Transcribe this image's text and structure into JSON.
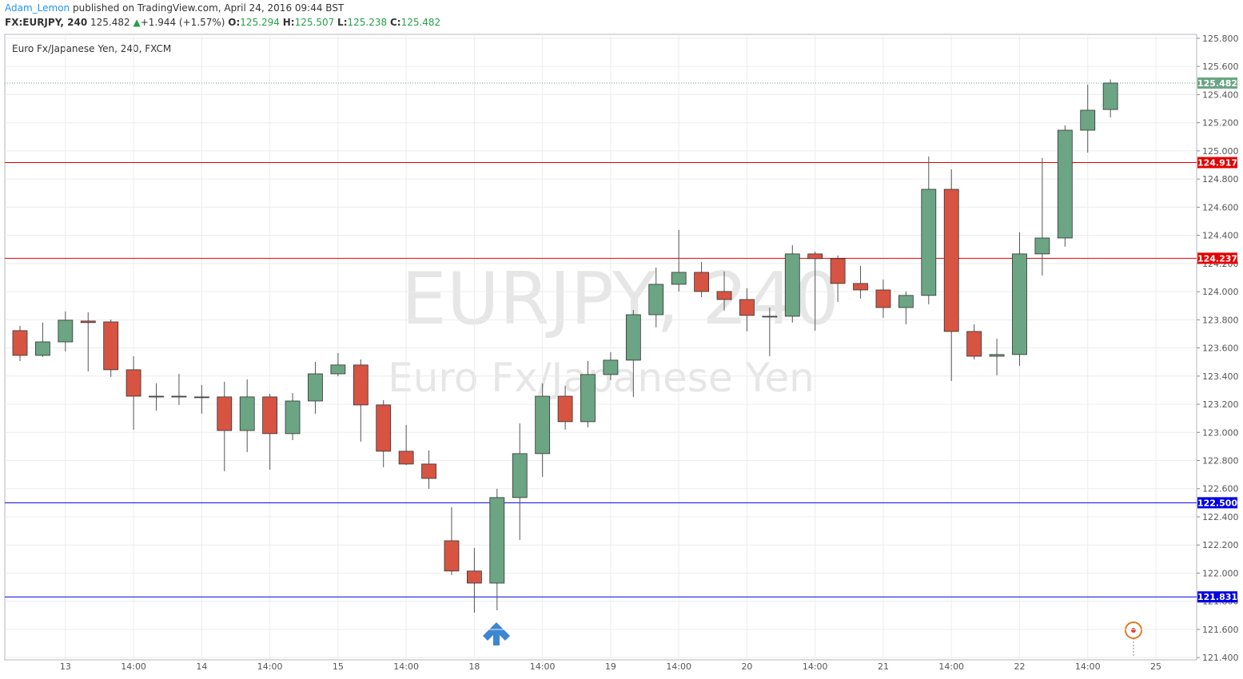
{
  "header": {
    "author": "Adam_Lemon",
    "published": "published on TradingView.com, April 24, 2016 09:44 BST",
    "symbol": "FX:EURJPY, 240",
    "last": "125.482",
    "change": "+1.944 (+1.57%)",
    "o_label": "O:",
    "o": "125.294",
    "h_label": "H:",
    "h": "125.507",
    "l_label": "L:",
    "l": "125.238",
    "c_label": "C:",
    "c": "125.482"
  },
  "chart_data": {
    "type": "candlestick",
    "title": "Euro Fx/Japanese Yen, 240, FXCM",
    "watermark": "EURJPY, 240",
    "watermark_sub": "Euro Fx/Japanese Yen",
    "categories": [
      null,
      null,
      "13",
      null,
      null,
      "14:00",
      null,
      null,
      "14",
      null,
      null,
      "14:00",
      null,
      null,
      "15",
      null,
      null,
      "14:00",
      null,
      null,
      "18",
      null,
      null,
      "14:00",
      null,
      null,
      "19",
      null,
      null,
      "14:00",
      null,
      null,
      "20",
      null,
      null,
      "14:00",
      null,
      null,
      "21",
      null,
      null,
      "14:00",
      null,
      null,
      "22",
      null,
      null,
      "14:00",
      null,
      null,
      "25"
    ],
    "open": [
      123.723,
      123.547,
      123.643,
      123.791,
      123.785,
      123.445,
      123.257,
      123.257,
      123.252,
      123.252,
      123.013,
      123.252,
      122.991,
      123.223,
      123.416,
      123.479,
      123.195,
      122.866,
      122.775,
      122.23,
      122.015,
      121.929,
      122.537,
      122.849,
      123.257,
      123.076,
      123.411,
      123.513,
      123.836,
      124.052,
      124.137,
      124.001,
      123.944,
      123.825,
      123.825,
      124.268,
      124.234,
      124.058,
      124.012,
      123.887,
      123.973,
      124.727,
      123.717,
      123.541,
      123.553,
      124.268,
      124.381,
      125.147,
      125.294,
      null,
      null
    ],
    "high": [
      123.757,
      123.78,
      123.859,
      123.853,
      123.802,
      123.541,
      123.348,
      123.416,
      123.337,
      123.36,
      123.377,
      123.274,
      123.28,
      123.501,
      123.564,
      123.518,
      123.229,
      123.053,
      122.872,
      122.469,
      122.179,
      122.599,
      123.064,
      123.348,
      123.331,
      123.507,
      123.57,
      123.87,
      124.171,
      124.438,
      124.211,
      124.143,
      124.024,
      123.887,
      124.33,
      124.285,
      124.257,
      124.183,
      124.086,
      124.001,
      124.96,
      124.869,
      123.768,
      123.666,
      124.421,
      124.949,
      125.181,
      125.471,
      125.507,
      null,
      null
    ],
    "low": [
      123.507,
      123.536,
      123.575,
      123.433,
      123.394,
      123.019,
      123.155,
      123.195,
      123.133,
      122.724,
      122.86,
      122.735,
      122.945,
      123.133,
      123.399,
      122.934,
      122.752,
      122.769,
      122.599,
      121.986,
      121.719,
      121.736,
      122.236,
      122.684,
      123.019,
      123.036,
      123.371,
      123.252,
      123.746,
      124.0,
      123.961,
      123.865,
      123.717,
      123.541,
      123.78,
      123.723,
      123.927,
      123.95,
      123.814,
      123.768,
      123.91,
      123.365,
      123.518,
      123.405,
      123.473,
      124.114,
      124.319,
      124.988,
      125.238,
      null,
      null
    ],
    "close": [
      123.547,
      123.643,
      123.797,
      123.78,
      123.445,
      123.257,
      123.257,
      123.257,
      123.252,
      123.013,
      123.252,
      122.991,
      123.223,
      123.416,
      123.479,
      123.195,
      122.866,
      122.775,
      122.673,
      122.015,
      121.929,
      122.537,
      122.849,
      123.257,
      123.076,
      123.411,
      123.513,
      123.836,
      124.052,
      124.137,
      124.001,
      123.944,
      123.831,
      123.825,
      124.268,
      124.234,
      124.058,
      124.012,
      123.887,
      123.973,
      124.727,
      123.717,
      123.541,
      123.553,
      124.268,
      124.381,
      125.147,
      125.289,
      125.482,
      null,
      null
    ],
    "up_color": "#6ba583",
    "down_color": "#d75442",
    "ylim": [
      121.384,
      125.828
    ],
    "yticks": [
      {
        "value": 121.4,
        "label": "121.400"
      },
      {
        "value": 121.6,
        "label": "121.600"
      },
      {
        "value": 121.8,
        "label": "121.800"
      },
      {
        "value": 122.0,
        "label": "122.000"
      },
      {
        "value": 122.2,
        "label": "122.200"
      },
      {
        "value": 122.4,
        "label": "122.400"
      },
      {
        "value": 122.6,
        "label": "122.600"
      },
      {
        "value": 122.8,
        "label": "122.800"
      },
      {
        "value": 123.0,
        "label": "123.000"
      },
      {
        "value": 123.2,
        "label": "123.200"
      },
      {
        "value": 123.4,
        "label": "123.400"
      },
      {
        "value": 123.6,
        "label": "123.600"
      },
      {
        "value": 123.8,
        "label": "123.800"
      },
      {
        "value": 124.0,
        "label": "124.000"
      },
      {
        "value": 124.2,
        "label": "124.200"
      },
      {
        "value": 124.4,
        "label": "124.400"
      },
      {
        "value": 124.6,
        "label": "124.600"
      },
      {
        "value": 124.8,
        "label": "124.800"
      },
      {
        "value": 125.0,
        "label": "125.000"
      },
      {
        "value": 125.2,
        "label": "125.200"
      },
      {
        "value": 125.4,
        "label": "125.400"
      },
      {
        "value": 125.6,
        "label": "125.600"
      },
      {
        "value": 125.8,
        "label": "125.800"
      }
    ],
    "grid": true,
    "hlines": [
      {
        "value": 124.917,
        "label": "124.917",
        "color": "#e50000"
      },
      {
        "value": 124.237,
        "label": "124.237",
        "color": "#e50000"
      },
      {
        "value": 122.5,
        "label": "122.500",
        "color": "#0000e5"
      },
      {
        "value": 121.831,
        "label": "121.831",
        "color": "#0000e5"
      }
    ],
    "last_price": {
      "value": 125.482,
      "label": "125.482",
      "color": "#6ba583"
    }
  }
}
